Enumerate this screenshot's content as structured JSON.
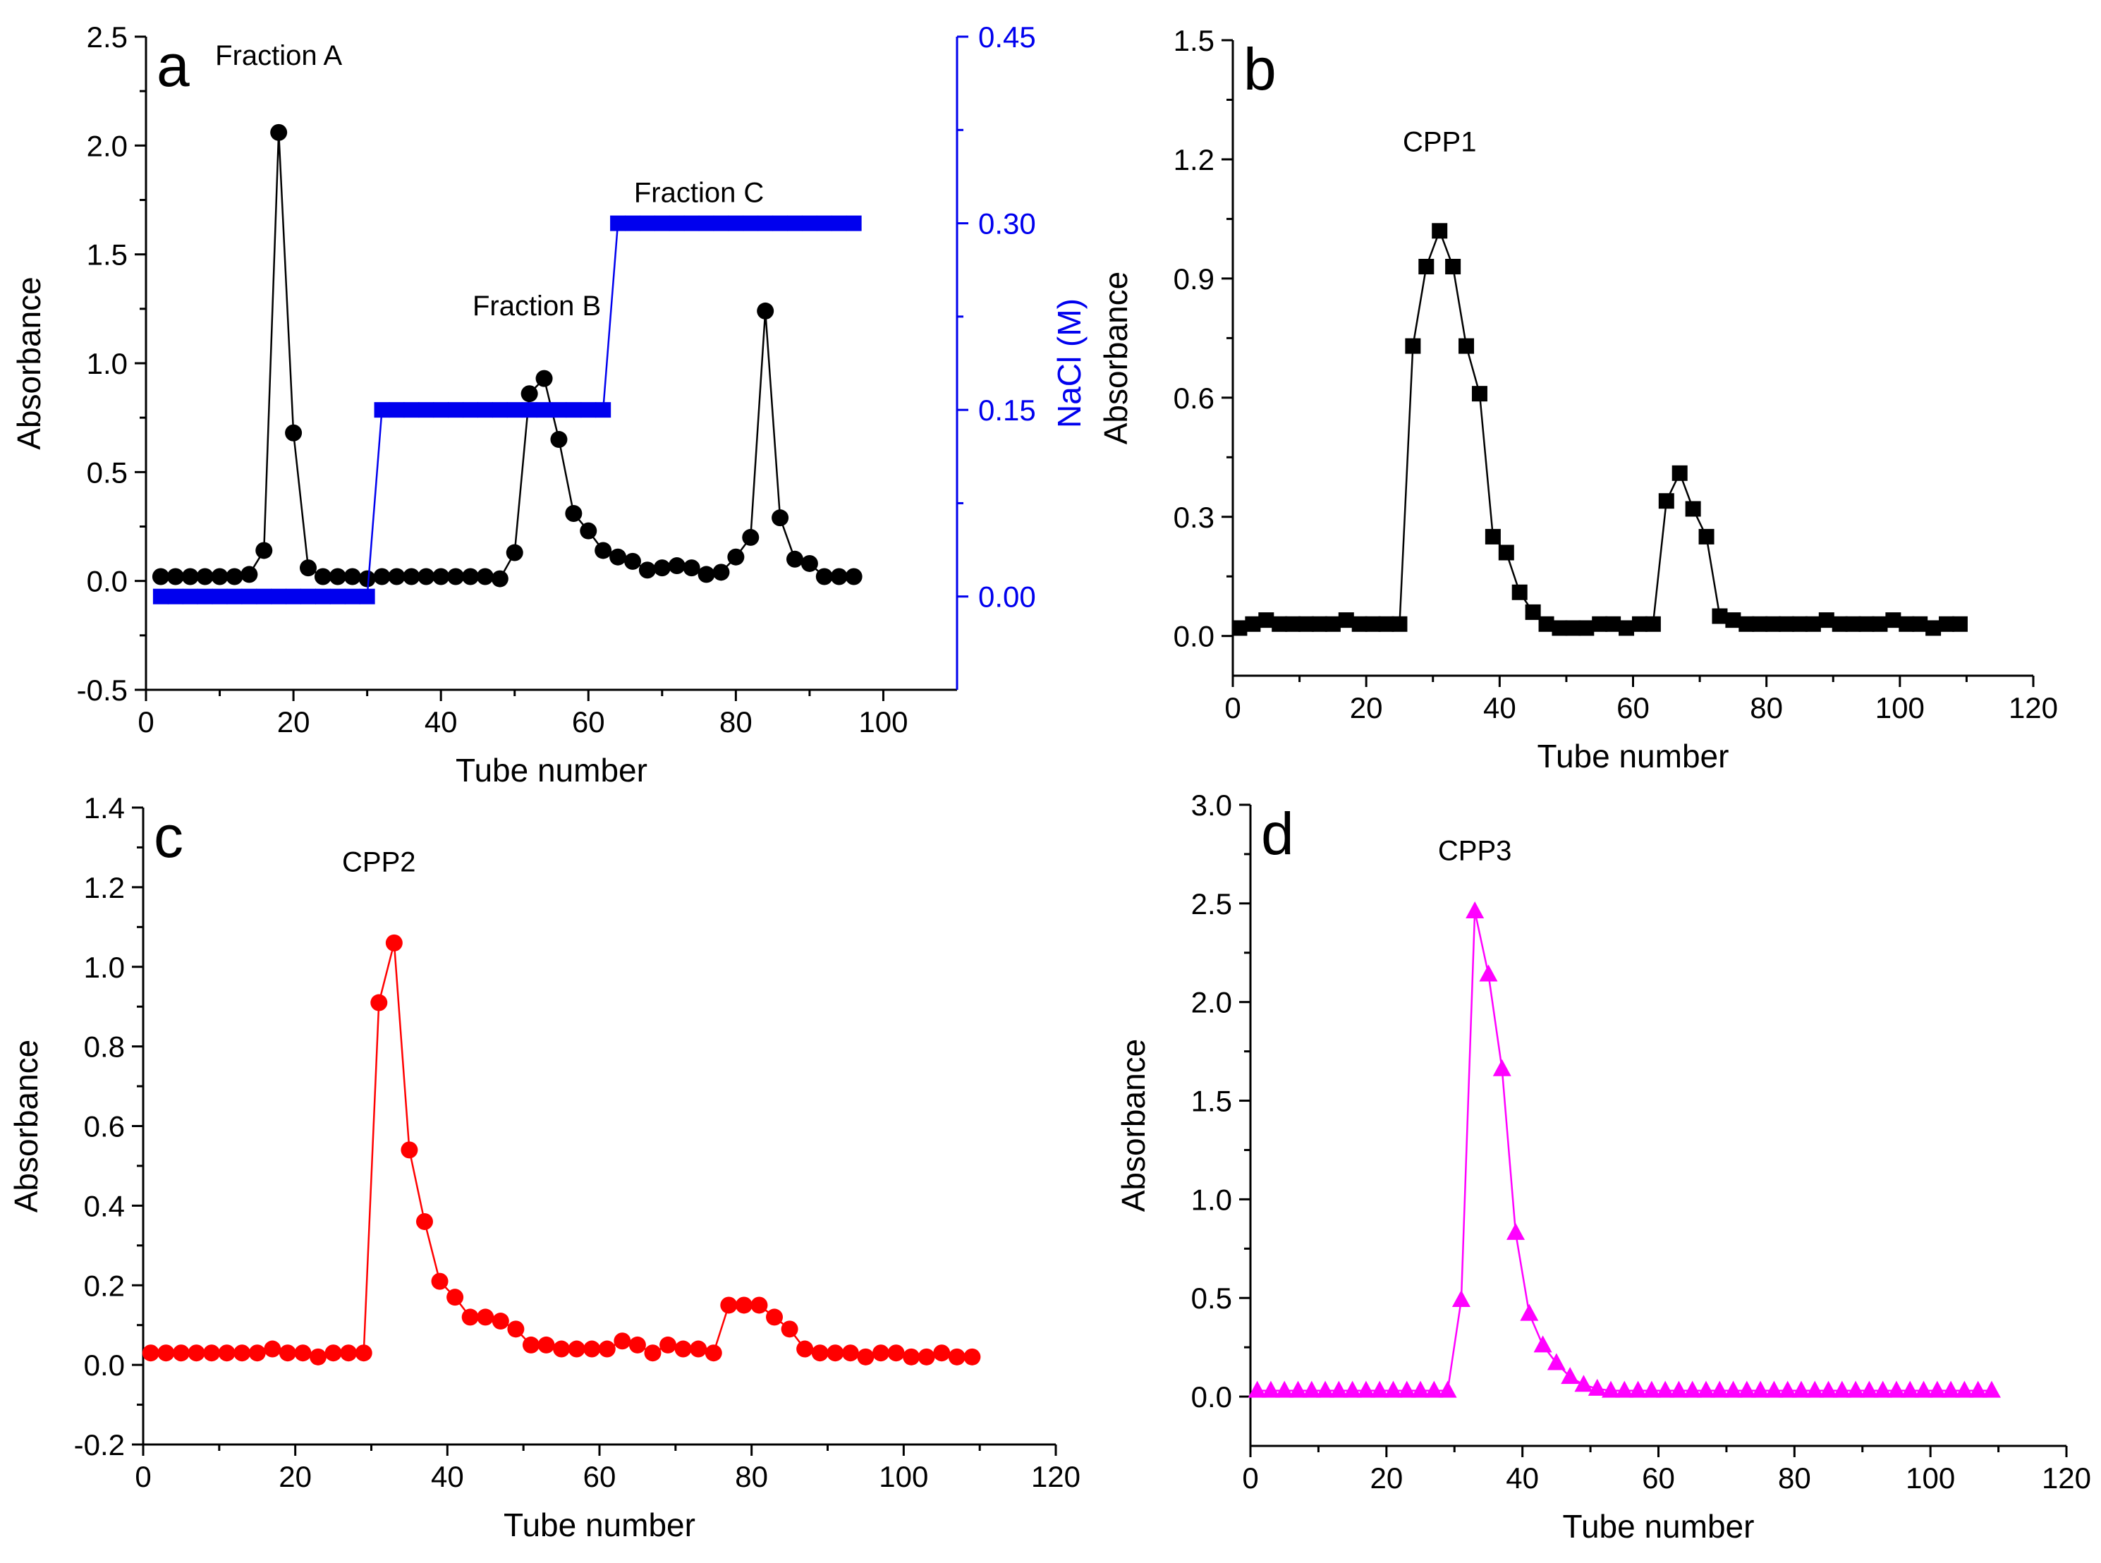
{
  "chart_data": [
    {
      "id": "a",
      "type": "line",
      "letter": "a",
      "title": "",
      "xlabel": "Tube number",
      "ylabel": "Absorbance",
      "y2label": "NaCl (M)",
      "xlim": [
        0,
        110
      ],
      "ylim": [
        -0.5,
        2.5
      ],
      "y2lim": [
        -0.075,
        0.45
      ],
      "xticks": [
        0,
        20,
        40,
        60,
        80,
        100
      ],
      "yticks": [
        -0.5,
        0.0,
        0.5,
        1.0,
        1.5,
        2.0,
        2.5
      ],
      "y2ticks": [
        0.0,
        0.15,
        0.3,
        0.45
      ],
      "xtick_labels": [
        "0",
        "20",
        "40",
        "60",
        "80",
        "100"
      ],
      "ytick_labels": [
        "-0.5",
        "0.0",
        "0.5",
        "1.0",
        "1.5",
        "2.0",
        "2.5"
      ],
      "y2tick_labels": [
        "0.00",
        "0.15",
        "0.30",
        "0.45"
      ],
      "annotations": [
        {
          "text": "Fraction A",
          "x": 18,
          "y": 2.37
        },
        {
          "text": "Fraction B",
          "x": 53,
          "y": 1.22
        },
        {
          "text": "Fraction C",
          "x": 75,
          "y": 1.74
        }
      ],
      "series": [
        {
          "name": "Absorbance",
          "axis": "left",
          "color": "#000000",
          "marker": "circle",
          "x": [
            2,
            4,
            6,
            8,
            10,
            12,
            14,
            16,
            18,
            20,
            22,
            24,
            26,
            28,
            30,
            32,
            34,
            36,
            38,
            40,
            42,
            44,
            46,
            48,
            50,
            52,
            54,
            56,
            58,
            60,
            62,
            64,
            66,
            68,
            70,
            72,
            74,
            76,
            78,
            80,
            82,
            84,
            86,
            88,
            90,
            92,
            94,
            96
          ],
          "values": [
            0.02,
            0.02,
            0.02,
            0.02,
            0.02,
            0.02,
            0.03,
            0.14,
            2.06,
            0.68,
            0.06,
            0.02,
            0.02,
            0.02,
            0.01,
            0.02,
            0.02,
            0.02,
            0.02,
            0.02,
            0.02,
            0.02,
            0.02,
            0.01,
            0.13,
            0.86,
            0.93,
            0.65,
            0.31,
            0.23,
            0.14,
            0.11,
            0.09,
            0.05,
            0.06,
            0.07,
            0.06,
            0.03,
            0.04,
            0.11,
            0.2,
            1.24,
            0.29,
            0.1,
            0.08,
            0.02,
            0.02,
            0.02
          ]
        },
        {
          "name": "NaCl (M)",
          "axis": "right",
          "color": "#0000ee",
          "marker": "square",
          "x": [
            2,
            4,
            6,
            8,
            10,
            12,
            14,
            16,
            18,
            20,
            22,
            24,
            26,
            28,
            30,
            32,
            34,
            36,
            38,
            40,
            42,
            44,
            46,
            48,
            50,
            52,
            54,
            56,
            58,
            60,
            62,
            64,
            66,
            68,
            70,
            72,
            74,
            76,
            78,
            80,
            82,
            84,
            86,
            88,
            90,
            92,
            94,
            96
          ],
          "values": [
            0,
            0,
            0,
            0,
            0,
            0,
            0,
            0,
            0,
            0,
            0,
            0,
            0,
            0,
            0,
            0.15,
            0.15,
            0.15,
            0.15,
            0.15,
            0.15,
            0.15,
            0.15,
            0.15,
            0.15,
            0.15,
            0.15,
            0.15,
            0.15,
            0.15,
            0.15,
            0.3,
            0.3,
            0.3,
            0.3,
            0.3,
            0.3,
            0.3,
            0.3,
            0.3,
            0.3,
            0.3,
            0.3,
            0.3,
            0.3,
            0.3,
            0.3,
            0.3
          ]
        }
      ]
    },
    {
      "id": "b",
      "type": "line",
      "letter": "b",
      "title": "",
      "xlabel": "Tube number",
      "ylabel": "Absorbance",
      "xlim": [
        0,
        120
      ],
      "ylim": [
        -0.1,
        1.5
      ],
      "xticks": [
        0,
        20,
        40,
        60,
        80,
        100,
        120
      ],
      "yticks": [
        0.0,
        0.3,
        0.6,
        0.9,
        1.2,
        1.5
      ],
      "xtick_labels": [
        "0",
        "20",
        "40",
        "60",
        "80",
        "100",
        "120"
      ],
      "ytick_labels": [
        "0.0",
        "0.3",
        "0.6",
        "0.9",
        "1.2",
        "1.5"
      ],
      "annotations": [
        {
          "text": "CPP1",
          "x": 31,
          "y": 1.22
        }
      ],
      "series": [
        {
          "name": "CPP1",
          "color": "#000000",
          "marker": "square",
          "x": [
            1,
            3,
            5,
            7,
            9,
            11,
            13,
            15,
            17,
            19,
            21,
            23,
            25,
            27,
            29,
            31,
            33,
            35,
            37,
            39,
            41,
            43,
            45,
            47,
            49,
            51,
            53,
            55,
            57,
            59,
            61,
            63,
            65,
            67,
            69,
            71,
            73,
            75,
            77,
            79,
            81,
            83,
            85,
            87,
            89,
            91,
            93,
            95,
            97,
            99,
            101,
            103,
            105,
            107,
            109
          ],
          "values": [
            0.02,
            0.03,
            0.04,
            0.03,
            0.03,
            0.03,
            0.03,
            0.03,
            0.04,
            0.03,
            0.03,
            0.03,
            0.03,
            0.73,
            0.93,
            1.02,
            0.93,
            0.73,
            0.61,
            0.25,
            0.21,
            0.11,
            0.06,
            0.03,
            0.02,
            0.02,
            0.02,
            0.03,
            0.03,
            0.02,
            0.03,
            0.03,
            0.34,
            0.41,
            0.32,
            0.25,
            0.05,
            0.04,
            0.03,
            0.03,
            0.03,
            0.03,
            0.03,
            0.03,
            0.04,
            0.03,
            0.03,
            0.03,
            0.03,
            0.04,
            0.03,
            0.03,
            0.02,
            0.03,
            0.03
          ]
        }
      ]
    },
    {
      "id": "c",
      "type": "line",
      "letter": "c",
      "title": "",
      "xlabel": "Tube number",
      "ylabel": "Absorbance",
      "xlim": [
        0,
        120
      ],
      "ylim": [
        -0.2,
        1.4
      ],
      "xticks": [
        0,
        20,
        40,
        60,
        80,
        100,
        120
      ],
      "yticks": [
        -0.2,
        0.0,
        0.2,
        0.4,
        0.6,
        0.8,
        1.0,
        1.2,
        1.4
      ],
      "xtick_labels": [
        "0",
        "20",
        "40",
        "60",
        "80",
        "100",
        "120"
      ],
      "ytick_labels": [
        "-0.2",
        "0.0",
        "0.2",
        "0.4",
        "0.6",
        "0.8",
        "1.0",
        "1.2",
        "1.4"
      ],
      "annotations": [
        {
          "text": "CPP2",
          "x": 31,
          "y": 1.24
        }
      ],
      "series": [
        {
          "name": "CPP2",
          "color": "#ff0000",
          "marker": "circle",
          "x": [
            1,
            3,
            5,
            7,
            9,
            11,
            13,
            15,
            17,
            19,
            21,
            23,
            25,
            27,
            29,
            31,
            33,
            35,
            37,
            39,
            41,
            43,
            45,
            47,
            49,
            51,
            53,
            55,
            57,
            59,
            61,
            63,
            65,
            67,
            69,
            71,
            73,
            75,
            77,
            79,
            81,
            83,
            85,
            87,
            89,
            91,
            93,
            95,
            97,
            99,
            101,
            103,
            105,
            107,
            109
          ],
          "values": [
            0.03,
            0.03,
            0.03,
            0.03,
            0.03,
            0.03,
            0.03,
            0.03,
            0.04,
            0.03,
            0.03,
            0.02,
            0.03,
            0.03,
            0.03,
            0.91,
            1.06,
            0.54,
            0.36,
            0.21,
            0.17,
            0.12,
            0.12,
            0.11,
            0.09,
            0.05,
            0.05,
            0.04,
            0.04,
            0.04,
            0.04,
            0.06,
            0.05,
            0.03,
            0.05,
            0.04,
            0.04,
            0.03,
            0.15,
            0.15,
            0.15,
            0.12,
            0.09,
            0.04,
            0.03,
            0.03,
            0.03,
            0.02,
            0.03,
            0.03,
            0.02,
            0.02,
            0.03,
            0.02,
            0.02
          ]
        }
      ]
    },
    {
      "id": "d",
      "type": "line",
      "letter": "d",
      "title": "",
      "xlabel": "Tube number",
      "ylabel": "Absorbance",
      "xlim": [
        0,
        120
      ],
      "ylim": [
        -0.25,
        3.0
      ],
      "xticks": [
        0,
        20,
        40,
        60,
        80,
        100,
        120
      ],
      "yticks": [
        0.0,
        0.5,
        1.0,
        1.5,
        2.0,
        2.5,
        3.0
      ],
      "xtick_labels": [
        "0",
        "20",
        "40",
        "60",
        "80",
        "100",
        "120"
      ],
      "ytick_labels": [
        "0.0",
        "0.5",
        "1.0",
        "1.5",
        "2.0",
        "2.5",
        "3.0"
      ],
      "annotations": [
        {
          "text": "CPP3",
          "x": 33,
          "y": 2.72
        }
      ],
      "series": [
        {
          "name": "CPP3",
          "color": "#ff00ff",
          "marker": "triangle",
          "x": [
            1,
            3,
            5,
            7,
            9,
            11,
            13,
            15,
            17,
            19,
            21,
            23,
            25,
            27,
            29,
            31,
            33,
            35,
            37,
            39,
            41,
            43,
            45,
            47,
            49,
            51,
            53,
            55,
            57,
            59,
            61,
            63,
            65,
            67,
            69,
            71,
            73,
            75,
            77,
            79,
            81,
            83,
            85,
            87,
            89,
            91,
            93,
            95,
            97,
            99,
            101,
            103,
            105,
            107,
            109
          ],
          "values": [
            0.03,
            0.03,
            0.03,
            0.03,
            0.03,
            0.03,
            0.03,
            0.03,
            0.03,
            0.03,
            0.03,
            0.03,
            0.03,
            0.03,
            0.03,
            0.49,
            2.46,
            2.14,
            1.66,
            0.83,
            0.42,
            0.26,
            0.17,
            0.1,
            0.06,
            0.04,
            0.03,
            0.03,
            0.03,
            0.03,
            0.03,
            0.03,
            0.03,
            0.03,
            0.03,
            0.03,
            0.03,
            0.03,
            0.03,
            0.03,
            0.03,
            0.03,
            0.03,
            0.03,
            0.03,
            0.03,
            0.03,
            0.03,
            0.03,
            0.03,
            0.03,
            0.03,
            0.03,
            0.03,
            0.03
          ]
        }
      ]
    }
  ]
}
